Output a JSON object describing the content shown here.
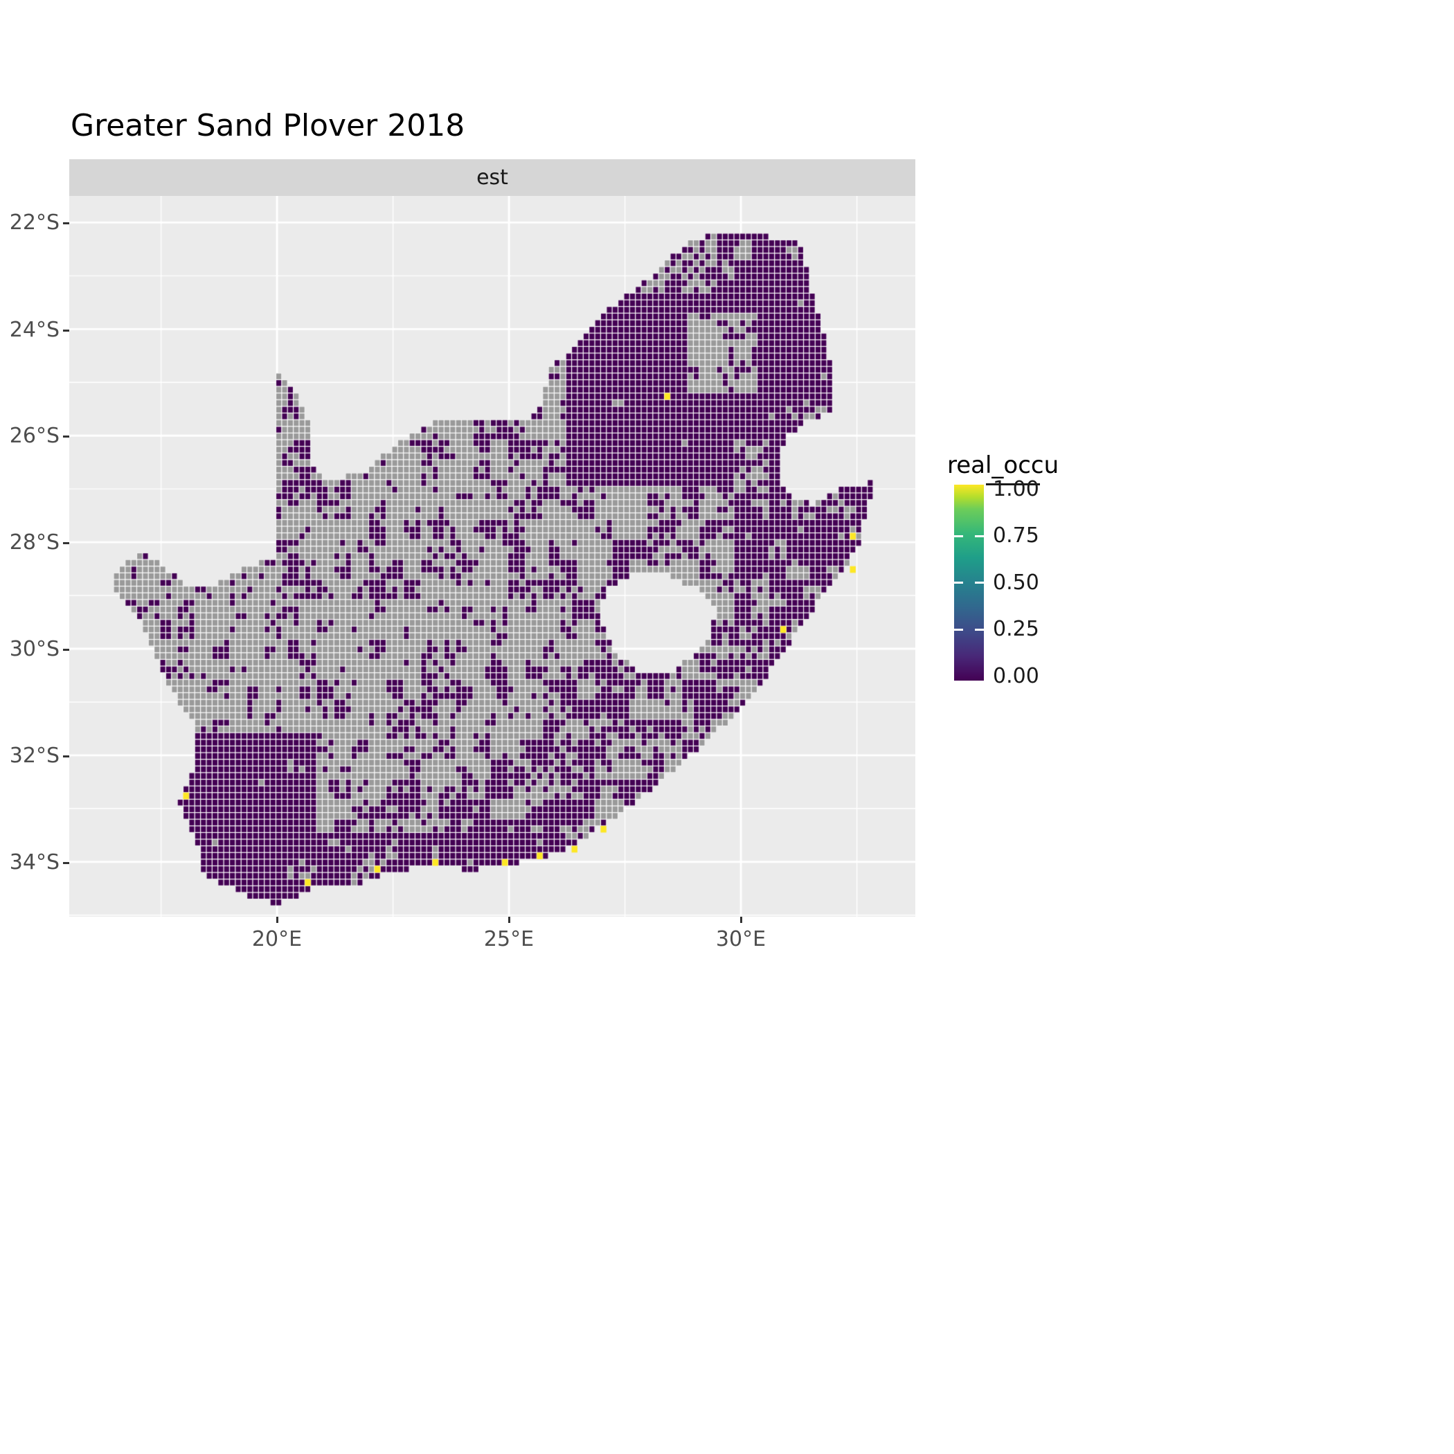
{
  "title": "Greater Sand Plover 2018",
  "facet_label": "est",
  "axes": {
    "y_labels": [
      "22°S",
      "24°S",
      "26°S",
      "28°S",
      "30°S",
      "32°S",
      "34°S"
    ],
    "x_labels": [
      "20°E",
      "25°E",
      "30°E"
    ]
  },
  "legend": {
    "title": "real_occu",
    "labels": [
      "1.00",
      "0.75",
      "0.50",
      "0.25",
      "0.00"
    ],
    "values": [
      1.0,
      0.75,
      0.5,
      0.25,
      0.0
    ]
  },
  "chart_data": {
    "type": "heatmap",
    "title": "Greater Sand Plover 2018",
    "facet": "est",
    "legend_title": "real_occu",
    "value_domain": [
      0,
      1
    ],
    "colormap": "viridis",
    "color_low": "#440154",
    "color_high": "#FDE725",
    "color_na": "#9a9a9a",
    "panel_background": "#ebebeb",
    "x_range": [
      15.52,
      33.76
    ],
    "y_range": [
      -35.03,
      -21.5
    ],
    "x_tick_values": [
      20,
      25,
      30
    ],
    "y_tick_values": [
      -22,
      -24,
      -26,
      -28,
      -30,
      -32,
      -34
    ],
    "gridlines": {
      "major_lon": [
        20,
        25,
        30
      ],
      "minor_lon": [
        17.5,
        22.5,
        27.5,
        32.5
      ],
      "major_lat": [
        -22,
        -24,
        -26,
        -28,
        -30,
        -32,
        -34
      ],
      "minor_lat": [
        -23,
        -25,
        -27,
        -29,
        -31,
        -33,
        -35
      ]
    },
    "viridis_stops": [
      [
        "#440154",
        0.0
      ],
      [
        "#482878",
        0.125
      ],
      [
        "#3E4A89",
        0.25
      ],
      [
        "#31688E",
        0.375
      ],
      [
        "#26828E",
        0.5
      ],
      [
        "#1F9E89",
        0.625
      ],
      [
        "#35B779",
        0.75
      ],
      [
        "#6DCD59",
        0.875
      ],
      [
        "#B4DE2C",
        0.9375
      ],
      [
        "#FDE725",
        1.0
      ]
    ],
    "cell_size_deg": 0.125,
    "grid_lon0": 16.35,
    "grid_lat0": -21.95,
    "grid_cols": 134,
    "grid_rows": 104,
    "base_presence_prob": 0.4,
    "country_polygon": [
      [
        16.45,
        -28.6
      ],
      [
        17.05,
        -28.2
      ],
      [
        17.45,
        -28.4
      ],
      [
        17.95,
        -28.75
      ],
      [
        18.6,
        -28.85
      ],
      [
        19.3,
        -28.5
      ],
      [
        19.98,
        -28.25
      ],
      [
        20.0,
        -24.77
      ],
      [
        20.45,
        -25.3
      ],
      [
        20.75,
        -25.8
      ],
      [
        20.7,
        -26.5
      ],
      [
        21.1,
        -26.85
      ],
      [
        21.9,
        -26.65
      ],
      [
        22.65,
        -26.1
      ],
      [
        23.4,
        -25.75
      ],
      [
        24.2,
        -25.65
      ],
      [
        25.0,
        -25.75
      ],
      [
        25.6,
        -25.6
      ],
      [
        25.9,
        -24.75
      ],
      [
        26.45,
        -24.3
      ],
      [
        27.15,
        -23.6
      ],
      [
        27.95,
        -23.1
      ],
      [
        28.95,
        -22.3
      ],
      [
        29.9,
        -22.15
      ],
      [
        30.9,
        -22.3
      ],
      [
        31.3,
        -22.4
      ],
      [
        31.6,
        -23.6
      ],
      [
        31.85,
        -24.2
      ],
      [
        31.98,
        -24.9
      ],
      [
        32.02,
        -25.55
      ],
      [
        31.4,
        -25.72
      ],
      [
        30.95,
        -26.05
      ],
      [
        30.8,
        -26.5
      ],
      [
        30.9,
        -26.9
      ],
      [
        31.15,
        -27.2
      ],
      [
        31.6,
        -27.3
      ],
      [
        31.97,
        -27.05
      ],
      [
        32.35,
        -26.95
      ],
      [
        32.89,
        -26.86
      ],
      [
        32.55,
        -28.0
      ],
      [
        32.15,
        -28.6
      ],
      [
        31.6,
        -29.2
      ],
      [
        31.05,
        -29.9
      ],
      [
        30.4,
        -30.7
      ],
      [
        29.6,
        -31.45
      ],
      [
        28.8,
        -32.1
      ],
      [
        27.9,
        -32.75
      ],
      [
        27.05,
        -33.3
      ],
      [
        26.4,
        -33.7
      ],
      [
        25.65,
        -33.95
      ],
      [
        25.0,
        -34.05
      ],
      [
        24.2,
        -34.15
      ],
      [
        23.4,
        -34.1
      ],
      [
        22.6,
        -34.15
      ],
      [
        21.8,
        -34.4
      ],
      [
        20.9,
        -34.45
      ],
      [
        20.0,
        -34.82
      ],
      [
        19.4,
        -34.65
      ],
      [
        18.85,
        -34.4
      ],
      [
        18.45,
        -34.35
      ],
      [
        18.35,
        -33.9
      ],
      [
        17.9,
        -32.9
      ],
      [
        18.25,
        -32.1
      ],
      [
        18.2,
        -31.4
      ],
      [
        17.6,
        -30.6
      ],
      [
        17.05,
        -29.5
      ],
      [
        16.5,
        -28.95
      ]
    ],
    "lesotho_hole": [
      [
        27.05,
        -28.9
      ],
      [
        27.7,
        -28.6
      ],
      [
        28.4,
        -28.6
      ],
      [
        29.1,
        -28.9
      ],
      [
        29.45,
        -29.3
      ],
      [
        29.25,
        -29.95
      ],
      [
        28.55,
        -30.4
      ],
      [
        27.8,
        -30.45
      ],
      [
        27.3,
        -30.05
      ],
      [
        27.0,
        -29.55
      ]
    ],
    "density_zones": [
      {
        "name": "northeast-dense-block",
        "box": [
          26.2,
          31.3,
          -23.3,
          -27.1
        ],
        "p": 0.95
      },
      {
        "name": "northeast-gray-inclusion",
        "box": [
          28.9,
          30.5,
          -23.7,
          -25.2
        ],
        "p": 0.32
      },
      {
        "name": "far-north-mixed",
        "box": [
          27.0,
          31.6,
          -22.0,
          -23.3
        ],
        "p": 0.58
      },
      {
        "name": "kruger-east-dense",
        "box": [
          30.3,
          32.1,
          -22.2,
          -25.7
        ],
        "p": 0.85
      },
      {
        "name": "north-kwazulu",
        "box": [
          29.9,
          33.0,
          -25.6,
          -28.4
        ],
        "p": 0.7
      },
      {
        "name": "kwazulu-coast",
        "box": [
          29.5,
          33.0,
          -28.4,
          -31.4
        ],
        "p": 0.55
      },
      {
        "name": "free-state-mixed",
        "box": [
          24.5,
          29.5,
          -26.9,
          -30.3
        ],
        "p": 0.46
      },
      {
        "name": "karoo-sparse",
        "box": [
          20.0,
          26.4,
          -29.0,
          -32.0
        ],
        "p": 0.34
      },
      {
        "name": "namaqualand-sparse",
        "box": [
          16.4,
          20.0,
          -28.0,
          -31.6
        ],
        "p": 0.3
      },
      {
        "name": "kalahari-sparse",
        "box": [
          19.9,
          23.0,
          -24.7,
          -27.6
        ],
        "p": 0.34
      },
      {
        "name": "eastern-cape-mixed",
        "box": [
          24.5,
          29.6,
          -30.3,
          -33.6
        ],
        "p": 0.53
      },
      {
        "name": "southwest-cape-dense",
        "box": [
          17.7,
          20.9,
          -31.6,
          -35.0
        ],
        "p": 0.85
      },
      {
        "name": "south-coast-dense",
        "box": [
          20.9,
          27.6,
          -33.4,
          -34.9
        ],
        "p": 0.76
      }
    ],
    "yellow_cells": [
      [
        28.45,
        -25.2
      ],
      [
        18.05,
        -32.8
      ],
      [
        20.7,
        -34.4
      ],
      [
        22.2,
        -34.1
      ],
      [
        23.4,
        -34.05
      ],
      [
        24.9,
        -34.0
      ],
      [
        25.7,
        -33.9
      ],
      [
        26.4,
        -33.7
      ],
      [
        27.0,
        -33.35
      ],
      [
        30.95,
        -29.6
      ],
      [
        32.35,
        -28.5
      ],
      [
        32.4,
        -27.9
      ]
    ]
  }
}
